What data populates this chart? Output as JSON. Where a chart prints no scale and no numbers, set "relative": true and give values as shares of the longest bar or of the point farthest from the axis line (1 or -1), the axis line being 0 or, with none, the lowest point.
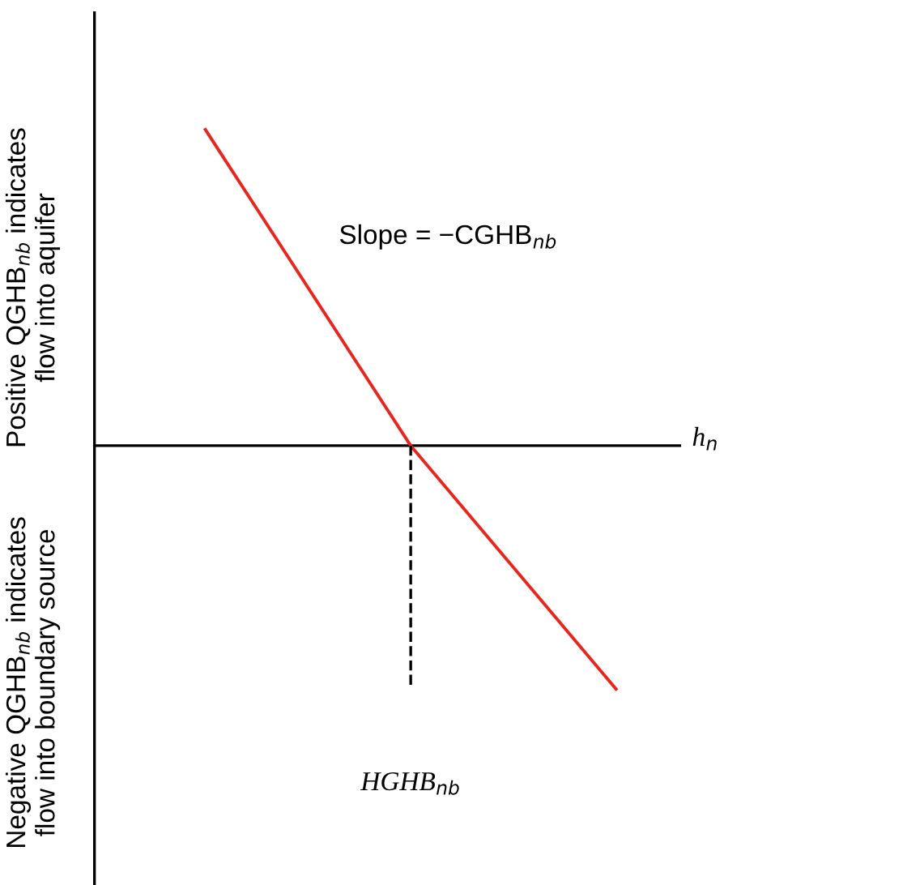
{
  "chart_data": {
    "type": "line",
    "relative": true,
    "categories": [
      null,
      null,
      null
    ],
    "series": [
      {
        "color": "#e8261e",
        "values": [
          1,
          0,
          -0.77
        ]
      }
    ],
    "xlabel": "h$_{n}$",
    "annotations": [
      "Positive QGHB$_{nb}$ indicates\nflow into aquifer",
      "Negative QGHB$_{nb}$ indicates\nflow into boundary source",
      "Slope = −CGHB$_{nb}$",
      "HGHB$_{nb}$"
    ],
    "marker": "none",
    "line_style": "solid"
  }
}
